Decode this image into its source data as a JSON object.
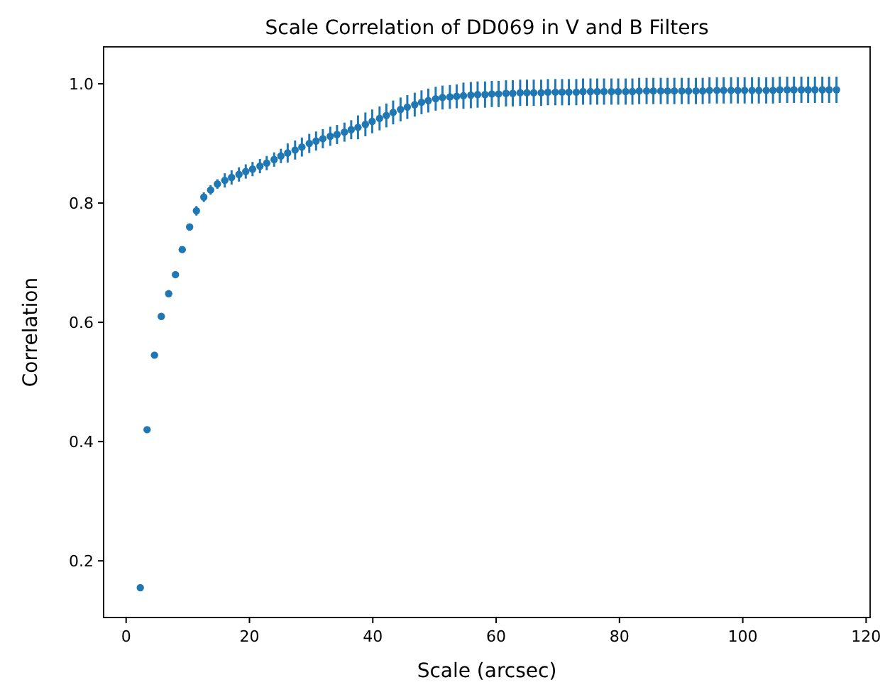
{
  "chart_data": {
    "type": "scatter",
    "title": "Scale Correlation of DD069 in V and B Filters",
    "xlabel": "Scale (arcsec)",
    "ylabel": "Correlation",
    "marker": "circle",
    "grid": false,
    "xlim": [
      -3.65,
      120.65
    ],
    "ylim": [
      0.105,
      1.062
    ],
    "xticks": [
      0,
      20,
      40,
      60,
      80,
      100,
      120
    ],
    "yticks": [
      {
        "value": 0.2,
        "label": "0.2"
      },
      {
        "value": 0.4,
        "label": "0.4"
      },
      {
        "value": 0.6,
        "label": "0.6"
      },
      {
        "value": 0.8,
        "label": "0.8"
      },
      {
        "value": 1.0,
        "label": "1.0"
      }
    ],
    "series": [
      {
        "color": "#1f77b4",
        "x": [
          2.3,
          3.4,
          4.6,
          5.7,
          6.9,
          8.0,
          9.1,
          10.3,
          11.4,
          12.6,
          13.7,
          14.8,
          16.0,
          17.1,
          18.3,
          19.4,
          20.5,
          21.7,
          22.8,
          24.0,
          25.1,
          26.2,
          27.4,
          28.5,
          29.7,
          30.8,
          31.9,
          33.1,
          34.2,
          35.4,
          36.5,
          37.6,
          38.8,
          39.9,
          41.1,
          42.2,
          43.3,
          44.5,
          45.6,
          46.8,
          47.9,
          49.0,
          50.2,
          51.3,
          52.5,
          53.6,
          54.7,
          55.9,
          57.0,
          58.2,
          59.3,
          60.4,
          61.6,
          62.7,
          63.9,
          65.0,
          66.1,
          67.3,
          68.4,
          69.6,
          70.7,
          71.8,
          73.0,
          74.1,
          75.3,
          76.4,
          77.5,
          78.7,
          79.8,
          81.0,
          82.1,
          83.2,
          84.4,
          85.5,
          86.7,
          87.8,
          88.9,
          90.1,
          91.2,
          92.4,
          93.5,
          94.6,
          95.8,
          96.9,
          98.1,
          99.2,
          100.3,
          101.5,
          102.6,
          103.8,
          104.9,
          106.0,
          107.2,
          108.3,
          109.5,
          110.6,
          111.7,
          112.9,
          114.0,
          115.2
        ],
        "values": [
          0.155,
          0.42,
          0.545,
          0.61,
          0.648,
          0.68,
          0.722,
          0.76,
          0.787,
          0.81,
          0.822,
          0.832,
          0.838,
          0.843,
          0.848,
          0.853,
          0.857,
          0.862,
          0.867,
          0.873,
          0.879,
          0.884,
          0.889,
          0.894,
          0.9,
          0.904,
          0.908,
          0.912,
          0.915,
          0.919,
          0.923,
          0.927,
          0.932,
          0.937,
          0.942,
          0.947,
          0.952,
          0.957,
          0.961,
          0.965,
          0.969,
          0.972,
          0.975,
          0.977,
          0.978,
          0.979,
          0.98,
          0.981,
          0.982,
          0.982,
          0.983,
          0.983,
          0.984,
          0.984,
          0.985,
          0.985,
          0.985,
          0.985,
          0.986,
          0.986,
          0.986,
          0.986,
          0.986,
          0.987,
          0.987,
          0.987,
          0.987,
          0.987,
          0.987,
          0.987,
          0.987,
          0.988,
          0.988,
          0.988,
          0.988,
          0.988,
          0.988,
          0.988,
          0.988,
          0.988,
          0.988,
          0.989,
          0.989,
          0.989,
          0.989,
          0.989,
          0.989,
          0.989,
          0.989,
          0.989,
          0.989,
          0.99,
          0.99,
          0.99,
          0.99,
          0.99,
          0.99,
          0.99,
          0.99,
          0.99
        ],
        "errors": [
          0.003,
          0.003,
          0.003,
          0.003,
          0.005,
          0.005,
          0.005,
          0.005,
          0.008,
          0.008,
          0.008,
          0.008,
          0.012,
          0.012,
          0.012,
          0.012,
          0.012,
          0.012,
          0.012,
          0.012,
          0.012,
          0.016,
          0.016,
          0.016,
          0.016,
          0.016,
          0.016,
          0.016,
          0.016,
          0.016,
          0.016,
          0.02,
          0.02,
          0.02,
          0.02,
          0.02,
          0.02,
          0.02,
          0.02,
          0.02,
          0.02,
          0.02,
          0.02,
          0.02,
          0.02,
          0.02,
          0.022,
          0.022,
          0.022,
          0.022,
          0.022,
          0.022,
          0.022,
          0.022,
          0.022,
          0.022,
          0.022,
          0.022,
          0.022,
          0.022,
          0.022,
          0.022,
          0.022,
          0.022,
          0.022,
          0.022,
          0.022,
          0.022,
          0.022,
          0.022,
          0.022,
          0.022,
          0.022,
          0.022,
          0.022,
          0.022,
          0.022,
          0.022,
          0.022,
          0.022,
          0.022,
          0.022,
          0.022,
          0.022,
          0.022,
          0.022,
          0.022,
          0.022,
          0.022,
          0.022,
          0.022,
          0.022,
          0.022,
          0.022,
          0.022,
          0.022,
          0.022,
          0.022,
          0.022,
          0.022
        ]
      }
    ]
  }
}
